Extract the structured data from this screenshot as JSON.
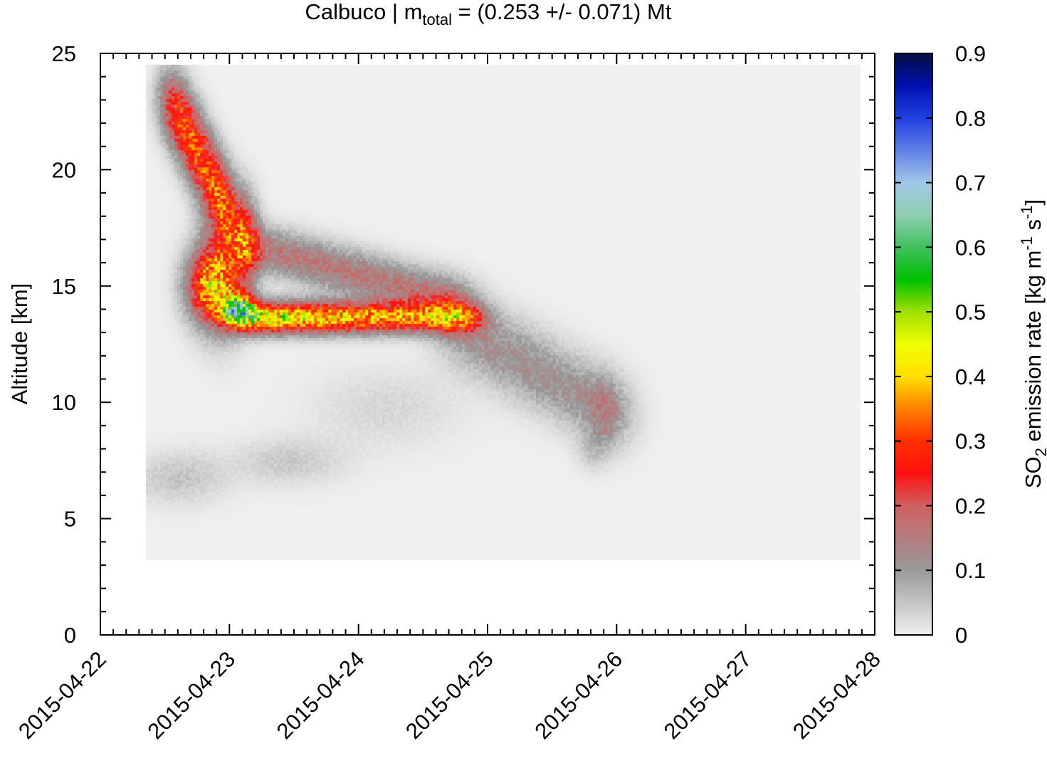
{
  "chart_data": {
    "type": "heatmap",
    "title_prefix": "Calbuco | m",
    "title_sub": "total",
    "title_suffix": " = (0.253 +/- 0.071) Mt",
    "xlabel": "",
    "ylabel": "Altitude [km]",
    "colorbar_label_parts": [
      "SO",
      "2",
      " emission rate [kg m",
      "-1",
      " s",
      "-1",
      "]"
    ],
    "x_range": [
      "2015-04-22",
      "2015-04-28"
    ],
    "x_ticks": [
      "2015-04-22",
      "2015-04-23",
      "2015-04-24",
      "2015-04-25",
      "2015-04-26",
      "2015-04-27",
      "2015-04-28"
    ],
    "y_range": [
      0,
      25
    ],
    "y_ticks": [
      "0",
      "5",
      "10",
      "15",
      "20",
      "25"
    ],
    "colorbar_range": [
      0,
      0.9
    ],
    "colorbar_ticks": [
      "0",
      "0.1",
      "0.2",
      "0.3",
      "0.4",
      "0.5",
      "0.6",
      "0.7",
      "0.8",
      "0.9"
    ],
    "colormap": [
      [
        0.0,
        "#f0f0f0"
      ],
      [
        0.1,
        "#999999"
      ],
      [
        0.2,
        "#d06060"
      ],
      [
        0.25,
        "#ff1010"
      ],
      [
        0.3,
        "#ff3000"
      ],
      [
        0.35,
        "#ff8000"
      ],
      [
        0.4,
        "#ffe000"
      ],
      [
        0.45,
        "#f0ff00"
      ],
      [
        0.5,
        "#a0e000"
      ],
      [
        0.55,
        "#00c000"
      ],
      [
        0.6,
        "#40c060"
      ],
      [
        0.65,
        "#90d0b0"
      ],
      [
        0.7,
        "#a0c8e8"
      ],
      [
        0.75,
        "#6080e8"
      ],
      [
        0.8,
        "#2040e0"
      ],
      [
        0.85,
        "#0010b0"
      ],
      [
        0.9,
        "#001040"
      ]
    ],
    "data_region": {
      "x": [
        "2015-04-22T08:00",
        "2015-04-27T21:00"
      ],
      "y_km": [
        3.3,
        24.6
      ],
      "background": "#f0f0f0"
    },
    "features": [
      {
        "name": "upper branch",
        "x": [
          "2015-04-22T11",
          "2015-04-23T04"
        ],
        "y_km": [
          17,
          23.5
        ],
        "max": 0.22
      },
      {
        "name": "core",
        "x": [
          "2015-04-22T21",
          "2015-04-23T07"
        ],
        "y_km": [
          13.5,
          19
        ],
        "max": 0.5
      },
      {
        "name": "peak",
        "x": "2015-04-23T00",
        "y_km": 14.2,
        "max": 0.75
      },
      {
        "name": "lower tongue",
        "x": [
          "2015-04-23T06",
          "2015-04-24T18"
        ],
        "y_km": [
          13.2,
          14.2
        ],
        "max": 0.45
      },
      {
        "name": "upper arm",
        "x": [
          "2015-04-23T06",
          "2015-04-24T12"
        ],
        "y_km": [
          14.5,
          17
        ],
        "max": 0.2
      },
      {
        "name": "tail",
        "x": [
          "2015-04-24T18",
          "2015-04-26T00"
        ],
        "y_km": [
          8,
          14
        ],
        "max": 0.1
      },
      {
        "name": "low layer",
        "x": [
          "2015-04-22T12",
          "2015-04-23T12"
        ],
        "y_km": [
          5.5,
          8
        ],
        "max": 0.1
      }
    ]
  }
}
